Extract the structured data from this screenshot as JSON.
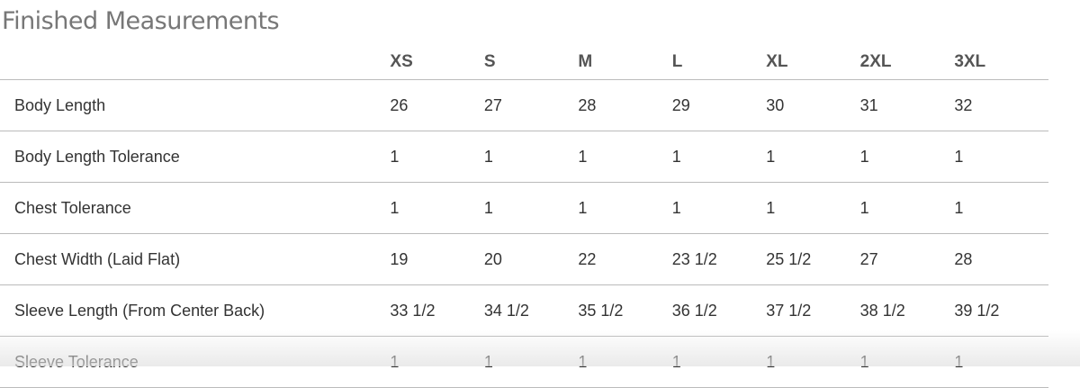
{
  "title": "Finished Measurements",
  "sizes": [
    "XS",
    "S",
    "M",
    "L",
    "XL",
    "2XL",
    "3XL"
  ],
  "rows": [
    {
      "label": "Body Length",
      "values": [
        "26",
        "27",
        "28",
        "29",
        "30",
        "31",
        "32"
      ]
    },
    {
      "label": "Body Length Tolerance",
      "values": [
        "1",
        "1",
        "1",
        "1",
        "1",
        "1",
        "1"
      ]
    },
    {
      "label": "Chest Tolerance",
      "values": [
        "1",
        "1",
        "1",
        "1",
        "1",
        "1",
        "1"
      ]
    },
    {
      "label": "Chest Width (Laid Flat)",
      "values": [
        "19",
        "20",
        "22",
        "23 1/2",
        "25 1/2",
        "27",
        "28"
      ]
    },
    {
      "label": "Sleeve Length (From Center Back)",
      "values": [
        "33 1/2",
        "34 1/2",
        "35 1/2",
        "36 1/2",
        "37 1/2",
        "38 1/2",
        "39 1/2"
      ]
    },
    {
      "label": "Sleeve Tolerance",
      "values": [
        "1",
        "1",
        "1",
        "1",
        "1",
        "1",
        "1"
      ]
    }
  ]
}
